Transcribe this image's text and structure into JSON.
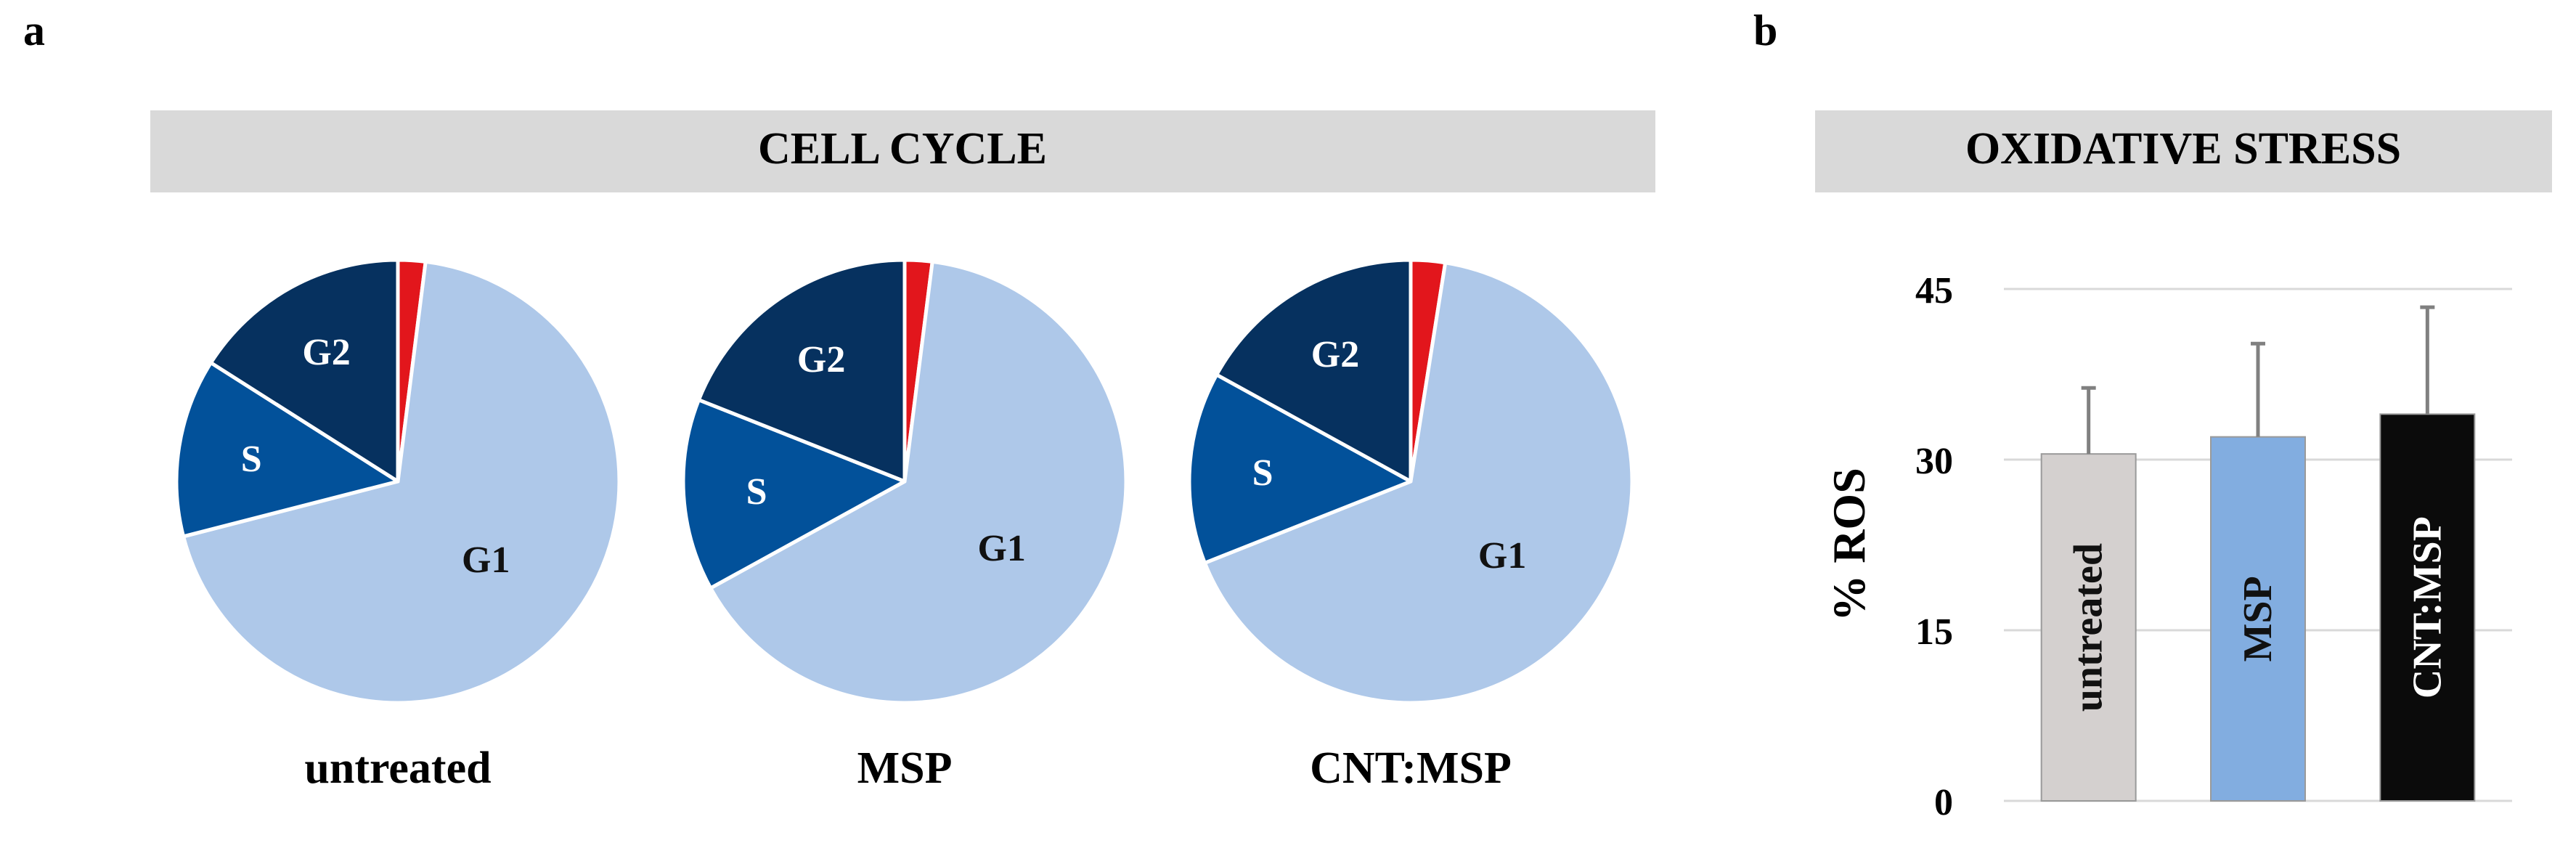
{
  "panels": {
    "a": {
      "letter": "a",
      "header": "CELL CYCLE"
    },
    "b": {
      "letter": "b",
      "header": "OXIDATIVE STRESS"
    }
  },
  "colors": {
    "header_bg": "#d9d9d9",
    "G1": "#aec8e9",
    "S": "#02519a",
    "G2": "#06315f",
    "subG1": "#e2161c",
    "bar_untreated": "#d4d0cf",
    "bar_MSP": "#82ade0",
    "bar_CNT_MSP": "#0b0b0b",
    "error_bar": "#808080",
    "gridline": "#d9d9d9"
  },
  "chart_data": [
    {
      "type": "pie",
      "title": "untreated",
      "slices": [
        {
          "label": "",
          "phase": "sub-G1",
          "value": 2
        },
        {
          "label": "G1",
          "value": 69
        },
        {
          "label": "S",
          "value": 13
        },
        {
          "label": "G2",
          "value": 16
        }
      ]
    },
    {
      "type": "pie",
      "title": "MSP",
      "slices": [
        {
          "label": "",
          "phase": "sub-G1",
          "value": 2
        },
        {
          "label": "G1",
          "value": 65
        },
        {
          "label": "S",
          "value": 14
        },
        {
          "label": "G2",
          "value": 19
        }
      ]
    },
    {
      "type": "pie",
      "title": "CNT:MSP",
      "slices": [
        {
          "label": "",
          "phase": "sub-G1",
          "value": 2.5
        },
        {
          "label": "G1",
          "value": 66.5
        },
        {
          "label": "S",
          "value": 14
        },
        {
          "label": "G2",
          "value": 17
        }
      ]
    },
    {
      "type": "bar",
      "title": "OXIDATIVE STRESS",
      "ylabel": "% ROS",
      "ylim": [
        0,
        45
      ],
      "yticks": [
        "0",
        "15",
        "30",
        "45"
      ],
      "grid": true,
      "categories": [
        "untreated",
        "MSP",
        "CNT:MSP"
      ],
      "values": [
        30.5,
        32,
        34
      ],
      "errors": [
        5.8,
        8.2,
        9.4
      ]
    }
  ]
}
